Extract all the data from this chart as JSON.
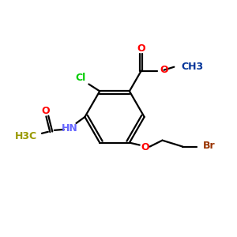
{
  "background_color": "#ffffff",
  "bond_color": "#000000",
  "cl_color": "#00cc00",
  "cl_label": "Cl",
  "hn_color": "#6666ff",
  "hn_label": "HN",
  "o_color": "#ff0000",
  "o_label": "O",
  "br_color": "#993300",
  "br_label": "Br",
  "h3c_color": "#999900",
  "h3c_label": "H3C",
  "ch3_color": "#003399",
  "ch3_label": "CH3",
  "lw": 1.6
}
